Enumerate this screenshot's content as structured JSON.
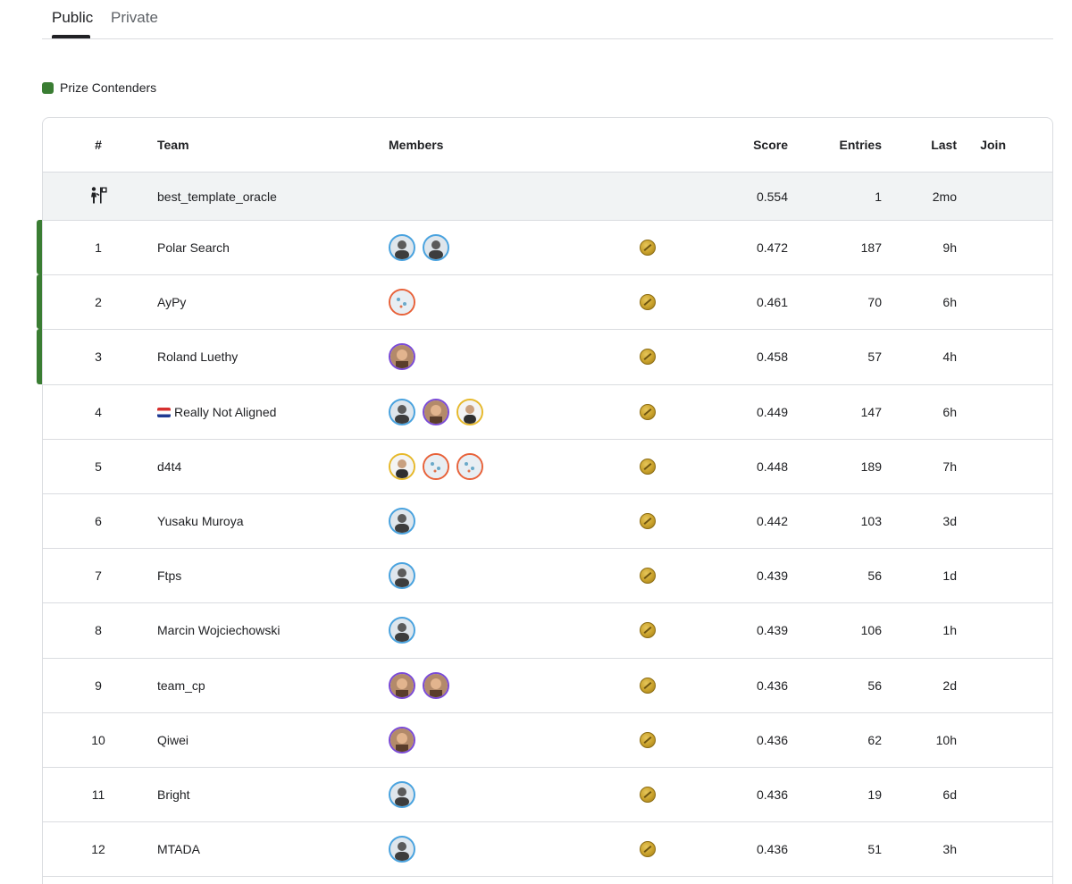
{
  "tabs": [
    {
      "label": "Public",
      "active": true
    },
    {
      "label": "Private",
      "active": false
    }
  ],
  "legend": {
    "label": "Prize Contenders",
    "color": "#3a7d33"
  },
  "table": {
    "headers": {
      "rank": "#",
      "team": "Team",
      "members": "Members",
      "score": "Score",
      "entries": "Entries",
      "last": "Last",
      "join": "Join"
    },
    "oracle": {
      "rank_icon": "benchmark-icon",
      "team": "best_template_oracle",
      "score": "0.554",
      "entries": "1",
      "last": "2mo"
    },
    "rows": [
      {
        "rank": "1",
        "team": "Polar Search",
        "score": "0.472",
        "entries": "187",
        "last": "9h",
        "prize": true,
        "avatars": [
          "blue",
          "blue"
        ]
      },
      {
        "rank": "2",
        "team": "AyPy",
        "score": "0.461",
        "entries": "70",
        "last": "6h",
        "prize": true,
        "avatars": [
          "orange"
        ]
      },
      {
        "rank": "3",
        "team": "Roland Luethy",
        "score": "0.458",
        "entries": "57",
        "last": "4h",
        "prize": true,
        "avatars": [
          "purple"
        ]
      },
      {
        "rank": "4",
        "team": "Really Not Aligned",
        "score": "0.449",
        "entries": "147",
        "last": "6h",
        "prize": false,
        "flag": true,
        "avatars": [
          "blue",
          "purple",
          "yellow"
        ]
      },
      {
        "rank": "5",
        "team": "d4t4",
        "score": "0.448",
        "entries": "189",
        "last": "7h",
        "prize": false,
        "avatars": [
          "yellow",
          "orange",
          "orange"
        ]
      },
      {
        "rank": "6",
        "team": "Yusaku Muroya",
        "score": "0.442",
        "entries": "103",
        "last": "3d",
        "prize": false,
        "avatars": [
          "blue"
        ]
      },
      {
        "rank": "7",
        "team": "Ftps",
        "score": "0.439",
        "entries": "56",
        "last": "1d",
        "prize": false,
        "avatars": [
          "blue"
        ]
      },
      {
        "rank": "8",
        "team": "Marcin Wojciechowski",
        "score": "0.439",
        "entries": "106",
        "last": "1h",
        "prize": false,
        "avatars": [
          "blue"
        ]
      },
      {
        "rank": "9",
        "team": "team_cp",
        "score": "0.436",
        "entries": "56",
        "last": "2d",
        "prize": false,
        "avatars": [
          "purple",
          "purple"
        ]
      },
      {
        "rank": "10",
        "team": "Qiwei",
        "score": "0.436",
        "entries": "62",
        "last": "10h",
        "prize": false,
        "avatars": [
          "purple"
        ]
      },
      {
        "rank": "11",
        "team": "Bright",
        "score": "0.436",
        "entries": "19",
        "last": "6d",
        "prize": false,
        "avatars": [
          "blue"
        ]
      },
      {
        "rank": "12",
        "team": "MTADA",
        "score": "0.436",
        "entries": "51",
        "last": "3h",
        "prize": false,
        "avatars": [
          "blue"
        ]
      }
    ]
  }
}
